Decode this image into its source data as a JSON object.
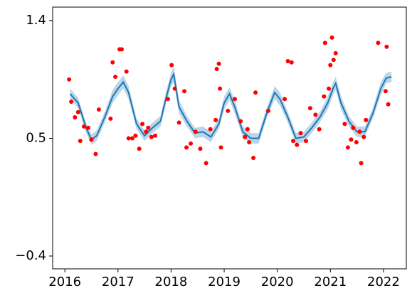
{
  "chart_data": {
    "type": "line",
    "xlim": [
      2015.77,
      2022.43
    ],
    "ylim": [
      -0.498,
      1.503
    ],
    "xticks": [
      2016,
      2017,
      2018,
      2019,
      2020,
      2021,
      2022
    ],
    "yticks": [
      {
        "value": -0.4,
        "label": "−0.4"
      },
      0.5,
      1.4
    ],
    "x": [
      2016.1,
      2016.25,
      2016.4,
      2016.5,
      2016.6,
      2016.75,
      2016.9,
      2017.0,
      2017.1,
      2017.2,
      2017.35,
      2017.5,
      2017.65,
      2017.8,
      2017.9,
      2018.0,
      2018.05,
      2018.15,
      2018.3,
      2018.45,
      2018.6,
      2018.75,
      2018.9,
      2019.0,
      2019.1,
      2019.2,
      2019.35,
      2019.5,
      2019.65,
      2019.8,
      2019.95,
      2020.05,
      2020.2,
      2020.35,
      2020.5,
      2020.65,
      2020.8,
      2020.95,
      2021.05,
      2021.1,
      2021.2,
      2021.35,
      2021.5,
      2021.65,
      2021.8,
      2021.95,
      2022.05,
      2022.15
    ],
    "series": [
      {
        "color": "#1f77b4",
        "values": [
          0.84,
          0.77,
          0.58,
          0.49,
          0.52,
          0.66,
          0.82,
          0.88,
          0.93,
          0.85,
          0.61,
          0.52,
          0.58,
          0.63,
          0.8,
          0.95,
          0.99,
          0.74,
          0.63,
          0.54,
          0.55,
          0.51,
          0.61,
          0.77,
          0.84,
          0.74,
          0.55,
          0.5,
          0.5,
          0.69,
          0.85,
          0.8,
          0.66,
          0.5,
          0.51,
          0.58,
          0.66,
          0.77,
          0.88,
          0.92,
          0.77,
          0.63,
          0.55,
          0.55,
          0.69,
          0.88,
          0.96,
          0.97
        ]
      }
    ],
    "band": {
      "color": "#1f77b4",
      "lower": [
        0.8,
        0.73,
        0.54,
        0.45,
        0.48,
        0.62,
        0.77,
        0.83,
        0.88,
        0.8,
        0.57,
        0.48,
        0.54,
        0.59,
        0.75,
        0.9,
        0.93,
        0.69,
        0.59,
        0.5,
        0.51,
        0.47,
        0.57,
        0.72,
        0.79,
        0.69,
        0.51,
        0.46,
        0.46,
        0.65,
        0.8,
        0.75,
        0.62,
        0.46,
        0.47,
        0.54,
        0.62,
        0.72,
        0.83,
        0.87,
        0.72,
        0.59,
        0.51,
        0.51,
        0.65,
        0.83,
        0.92,
        0.93
      ],
      "upper": [
        0.88,
        0.81,
        0.62,
        0.53,
        0.56,
        0.7,
        0.87,
        0.93,
        0.98,
        0.9,
        0.65,
        0.56,
        0.62,
        0.67,
        0.85,
        1.0,
        1.05,
        0.79,
        0.67,
        0.58,
        0.59,
        0.55,
        0.65,
        0.82,
        0.89,
        0.79,
        0.59,
        0.54,
        0.54,
        0.73,
        0.9,
        0.85,
        0.7,
        0.54,
        0.55,
        0.62,
        0.7,
        0.82,
        0.93,
        0.97,
        0.82,
        0.67,
        0.59,
        0.59,
        0.73,
        0.93,
        1.0,
        1.01
      ]
    },
    "scatter": {
      "color": "#ff0000",
      "x": [
        2016.08,
        2016.12,
        2016.19,
        2016.25,
        2016.29,
        2016.36,
        2016.44,
        2016.5,
        2016.58,
        2016.64,
        2016.86,
        2016.9,
        2016.95,
        2017.03,
        2017.07,
        2017.16,
        2017.2,
        2017.27,
        2017.33,
        2017.4,
        2017.46,
        2017.53,
        2017.57,
        2017.63,
        2017.7,
        2017.94,
        2018.01,
        2018.07,
        2018.15,
        2018.25,
        2018.29,
        2018.37,
        2018.46,
        2018.55,
        2018.66,
        2018.74,
        2018.84,
        2018.86,
        2018.9,
        2018.92,
        2018.94,
        2019.07,
        2019.2,
        2019.31,
        2019.39,
        2019.44,
        2019.47,
        2019.55,
        2019.59,
        2019.83,
        2020.14,
        2020.2,
        2020.27,
        2020.3,
        2020.37,
        2020.44,
        2020.54,
        2020.62,
        2020.72,
        2020.79,
        2020.88,
        2020.9,
        2020.97,
        2021.0,
        2021.03,
        2021.06,
        2021.1,
        2021.27,
        2021.33,
        2021.39,
        2021.43,
        2021.49,
        2021.55,
        2021.58,
        2021.63,
        2021.67,
        2021.9,
        2022.04,
        2022.06,
        2022.09
      ],
      "values": [
        0.95,
        0.78,
        0.66,
        0.7,
        0.48,
        0.59,
        0.58,
        0.49,
        0.38,
        0.72,
        0.65,
        1.08,
        0.97,
        1.18,
        1.18,
        1.01,
        0.5,
        0.5,
        0.52,
        0.42,
        0.61,
        0.55,
        0.58,
        0.51,
        0.52,
        0.8,
        1.06,
        0.88,
        0.62,
        0.86,
        0.43,
        0.46,
        0.55,
        0.42,
        0.31,
        0.57,
        0.64,
        1.03,
        1.07,
        0.88,
        0.43,
        0.71,
        0.8,
        0.63,
        0.51,
        0.57,
        0.47,
        0.35,
        0.85,
        0.71,
        0.8,
        1.09,
        1.08,
        0.48,
        0.45,
        0.54,
        0.48,
        0.73,
        0.68,
        0.57,
        0.82,
        1.23,
        0.88,
        1.06,
        1.27,
        1.1,
        1.15,
        0.61,
        0.43,
        0.49,
        0.58,
        0.47,
        0.55,
        0.31,
        0.51,
        0.64,
        1.23,
        0.86,
        1.2,
        0.76
      ]
    }
  }
}
